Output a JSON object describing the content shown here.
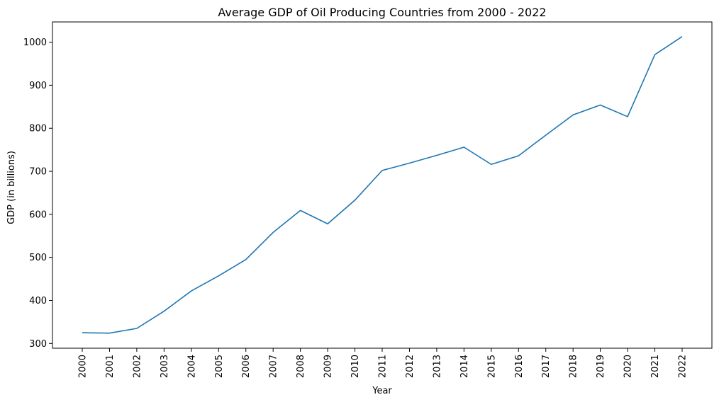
{
  "chart_data": {
    "type": "line",
    "title": "Average GDP of Oil Producing Countries from 2000 - 2022",
    "xlabel": "Year",
    "ylabel": "GDP (in billions)",
    "x": [
      "2000",
      "2001",
      "2002",
      "2003",
      "2004",
      "2005",
      "2006",
      "2007",
      "2008",
      "2009",
      "2010",
      "2011",
      "2012",
      "2013",
      "2014",
      "2015",
      "2016",
      "2017",
      "2018",
      "2019",
      "2020",
      "2021",
      "2022"
    ],
    "y": [
      325,
      324,
      335,
      375,
      422,
      457,
      495,
      558,
      609,
      578,
      633,
      702,
      719,
      737,
      756,
      716,
      736,
      784,
      831,
      854,
      827,
      971,
      1013
    ],
    "yticks": [
      300,
      400,
      500,
      600,
      700,
      800,
      900,
      1000
    ],
    "ylim": [
      289,
      1047
    ],
    "grid": false,
    "line_color": "#1f77b4"
  }
}
